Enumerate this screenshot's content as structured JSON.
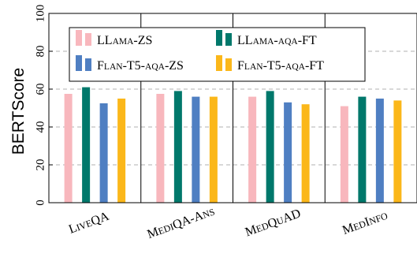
{
  "chart_data": {
    "type": "bar",
    "ylabel": "BERTScore",
    "xlabel": "",
    "ylim": [
      0,
      100
    ],
    "yticks": [
      "0",
      "20",
      "40",
      "60",
      "80",
      "100"
    ],
    "grid": "horizontal dashed",
    "legend_position": "top",
    "categories": [
      "LiveQA",
      "MediQA-Ans",
      "MedQuAD",
      "MedInfo"
    ],
    "series": [
      {
        "name": "LLama-ZS",
        "color": "#f8b7bd",
        "values": [
          57.5,
          57.5,
          56.0,
          51.0
        ]
      },
      {
        "name": "LLama-aqa-FT",
        "color": "#00786b",
        "values": [
          61.0,
          59.0,
          59.0,
          56.0
        ]
      },
      {
        "name": "Flan-T5-aqa-ZS",
        "color": "#4f7fc2",
        "values": [
          52.5,
          56.0,
          53.0,
          55.0
        ]
      },
      {
        "name": "Flan-T5-aqa-FT",
        "color": "#fbb71a",
        "values": [
          55.0,
          56.0,
          52.0,
          54.0
        ]
      }
    ]
  }
}
